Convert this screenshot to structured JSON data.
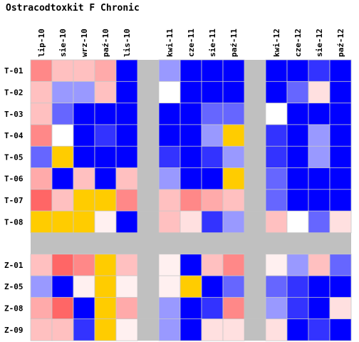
{
  "chart_data": {
    "type": "heatmap",
    "title": "Ostracodtoxkit F Chronic",
    "columns": [
      "lip-10",
      "sie-10",
      "wrz-10",
      "paź-10",
      "lis-10",
      "",
      "kwi-11",
      "cze-11",
      "sie-11",
      "paź-11",
      "",
      "kwi-12",
      "cze-12",
      "sie-12",
      "paź-12"
    ],
    "rows": [
      "T-01",
      "T-02",
      "T-03",
      "T-04",
      "T-05",
      "T-06",
      "T-07",
      "T-08",
      "",
      "Z-01",
      "Z-05",
      "Z-08",
      "Z-09"
    ],
    "legend": {
      "Y": "#ffcc00",
      "R4": "#ff6666",
      "R3": "#ff8888",
      "R2": "#ffaaaa",
      "R1": "#ffc0c0",
      "R0": "#ffe0e0",
      "RW": "#fff0f0",
      "W": "#ffffff",
      "L2": "#9999ff",
      "L1": "#6666ff",
      "M": "#3333ff",
      "B": "#0000ff",
      "G": "#c0c0c0"
    },
    "values": [
      [
        "R3",
        "R1",
        "R1",
        "R2",
        "B",
        "G",
        "L2",
        "B",
        "B",
        "B",
        "G",
        "B",
        "B",
        "M",
        "B"
      ],
      [
        "R1",
        "L2",
        "L2",
        "R1",
        "B",
        "G",
        "W",
        "B",
        "B",
        "B",
        "G",
        "B",
        "L1",
        "R0",
        "B"
      ],
      [
        "R1",
        "L1",
        "B",
        "B",
        "B",
        "G",
        "B",
        "B",
        "L1",
        "L1",
        "G",
        "W",
        "B",
        "B",
        "B"
      ],
      [
        "R3",
        "W",
        "B",
        "M",
        "B",
        "G",
        "B",
        "B",
        "L2",
        "Y",
        "G",
        "M",
        "B",
        "L2",
        "B"
      ],
      [
        "L1",
        "Y",
        "B",
        "B",
        "B",
        "G",
        "M",
        "B",
        "M",
        "L2",
        "G",
        "M",
        "B",
        "L2",
        "B"
      ],
      [
        "R2",
        "B",
        "R1",
        "B",
        "R1",
        "G",
        "L2",
        "B",
        "B",
        "Y",
        "G",
        "L1",
        "B",
        "B",
        "B"
      ],
      [
        "R4",
        "R1",
        "Y",
        "Y",
        "R3",
        "G",
        "R1",
        "R3",
        "R2",
        "R1",
        "G",
        "L1",
        "B",
        "B",
        "B"
      ],
      [
        "Y",
        "Y",
        "Y",
        "RW",
        "B",
        "G",
        "R1",
        "R0",
        "M",
        "L2",
        "G",
        "R1",
        "W",
        "L1",
        "R0"
      ],
      [
        "G",
        "G",
        "G",
        "G",
        "G",
        "G",
        "G",
        "G",
        "G",
        "G",
        "G",
        "G",
        "G",
        "G",
        "G"
      ],
      [
        "R1",
        "R4",
        "R3",
        "Y",
        "R1",
        "G",
        "RW",
        "B",
        "R1",
        "R3",
        "G",
        "RW",
        "L2",
        "R1",
        "L1"
      ],
      [
        "L2",
        "B",
        "RW",
        "Y",
        "RW",
        "G",
        "RW",
        "Y",
        "B",
        "L1",
        "G",
        "L1",
        "M",
        "B",
        "B"
      ],
      [
        "R2",
        "R4",
        "B",
        "Y",
        "R2",
        "G",
        "L2",
        "B",
        "M",
        "R3",
        "G",
        "L2",
        "M",
        "B",
        "R0"
      ],
      [
        "R1",
        "R1",
        "M",
        "Y",
        "RW",
        "G",
        "L2",
        "B",
        "R0",
        "R0",
        "G",
        "R0",
        "B",
        "M",
        "B"
      ]
    ]
  }
}
